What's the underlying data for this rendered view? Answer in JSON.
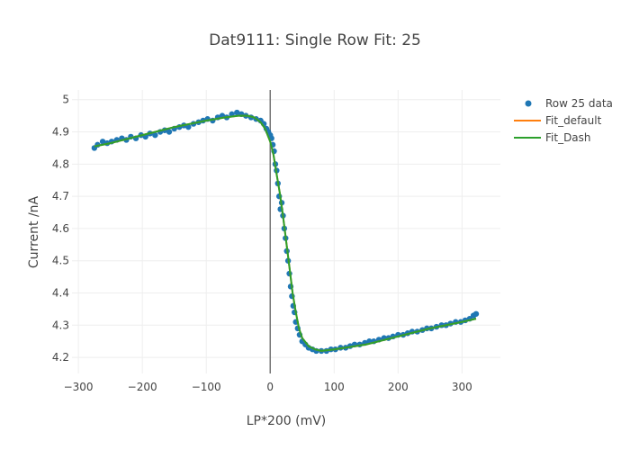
{
  "chart_data": {
    "type": "scatter",
    "title": "Dat9111: Single Row Fit: 25",
    "xlabel": "LP*200 (mV)",
    "ylabel": "Current /nA",
    "xlim": [
      -310,
      360
    ],
    "ylim": [
      4.15,
      5.03
    ],
    "x_ticks": [
      -300,
      -200,
      -100,
      0,
      100,
      200,
      300
    ],
    "x_tick_labels": [
      "−300",
      "−200",
      "−100",
      "0",
      "100",
      "200",
      "300"
    ],
    "y_ticks": [
      4.2,
      4.3,
      4.4,
      4.5,
      4.6,
      4.7,
      4.8,
      4.9,
      5
    ],
    "y_tick_labels": [
      "4.2",
      "4.3",
      "4.4",
      "4.5",
      "4.6",
      "4.7",
      "4.8",
      "4.9",
      "5"
    ],
    "grid": true,
    "legend_position": "top-right",
    "vertical_line_x": 0,
    "series": [
      {
        "name": "Row 25 data",
        "kind": "markers",
        "color": "#1f77b4",
        "points": [
          [
            -275,
            4.85
          ],
          [
            -270,
            4.86
          ],
          [
            -262,
            4.87
          ],
          [
            -255,
            4.865
          ],
          [
            -248,
            4.87
          ],
          [
            -240,
            4.875
          ],
          [
            -232,
            4.88
          ],
          [
            -225,
            4.875
          ],
          [
            -218,
            4.885
          ],
          [
            -210,
            4.88
          ],
          [
            -202,
            4.89
          ],
          [
            -195,
            4.885
          ],
          [
            -188,
            4.895
          ],
          [
            -180,
            4.89
          ],
          [
            -172,
            4.9
          ],
          [
            -165,
            4.905
          ],
          [
            -158,
            4.9
          ],
          [
            -150,
            4.91
          ],
          [
            -142,
            4.915
          ],
          [
            -135,
            4.92
          ],
          [
            -128,
            4.915
          ],
          [
            -120,
            4.925
          ],
          [
            -112,
            4.93
          ],
          [
            -105,
            4.935
          ],
          [
            -98,
            4.94
          ],
          [
            -90,
            4.935
          ],
          [
            -82,
            4.945
          ],
          [
            -75,
            4.95
          ],
          [
            -68,
            4.945
          ],
          [
            -60,
            4.955
          ],
          [
            -52,
            4.96
          ],
          [
            -45,
            4.955
          ],
          [
            -38,
            4.95
          ],
          [
            -30,
            4.945
          ],
          [
            -22,
            4.94
          ],
          [
            -15,
            4.935
          ],
          [
            -10,
            4.925
          ],
          [
            -6,
            4.91
          ],
          [
            -3,
            4.9
          ],
          [
            0,
            4.89
          ],
          [
            2,
            4.88
          ],
          [
            4,
            4.86
          ],
          [
            6,
            4.84
          ],
          [
            8,
            4.8
          ],
          [
            10,
            4.78
          ],
          [
            12,
            4.74
          ],
          [
            14,
            4.7
          ],
          [
            16,
            4.66
          ],
          [
            18,
            4.68
          ],
          [
            20,
            4.64
          ],
          [
            22,
            4.6
          ],
          [
            24,
            4.57
          ],
          [
            26,
            4.53
          ],
          [
            28,
            4.5
          ],
          [
            30,
            4.46
          ],
          [
            32,
            4.42
          ],
          [
            34,
            4.39
          ],
          [
            36,
            4.36
          ],
          [
            38,
            4.34
          ],
          [
            40,
            4.31
          ],
          [
            43,
            4.29
          ],
          [
            46,
            4.27
          ],
          [
            50,
            4.25
          ],
          [
            55,
            4.24
          ],
          [
            60,
            4.23
          ],
          [
            66,
            4.225
          ],
          [
            72,
            4.22
          ],
          [
            80,
            4.22
          ],
          [
            88,
            4.22
          ],
          [
            95,
            4.225
          ],
          [
            102,
            4.225
          ],
          [
            110,
            4.23
          ],
          [
            118,
            4.23
          ],
          [
            125,
            4.235
          ],
          [
            132,
            4.24
          ],
          [
            140,
            4.24
          ],
          [
            148,
            4.245
          ],
          [
            155,
            4.25
          ],
          [
            162,
            4.25
          ],
          [
            170,
            4.255
          ],
          [
            178,
            4.26
          ],
          [
            185,
            4.26
          ],
          [
            192,
            4.265
          ],
          [
            200,
            4.27
          ],
          [
            208,
            4.27
          ],
          [
            215,
            4.275
          ],
          [
            222,
            4.28
          ],
          [
            230,
            4.28
          ],
          [
            238,
            4.285
          ],
          [
            245,
            4.29
          ],
          [
            252,
            4.29
          ],
          [
            260,
            4.295
          ],
          [
            268,
            4.3
          ],
          [
            275,
            4.3
          ],
          [
            282,
            4.305
          ],
          [
            290,
            4.31
          ],
          [
            298,
            4.31
          ],
          [
            305,
            4.315
          ],
          [
            312,
            4.32
          ],
          [
            318,
            4.33
          ],
          [
            322,
            4.335
          ]
        ]
      },
      {
        "name": "Fit_default",
        "kind": "line",
        "color": "#ff7f0e",
        "x": [
          -275,
          -250,
          -200,
          -150,
          -100,
          -70,
          -50,
          -35,
          -25,
          -15,
          -8,
          0,
          5,
          10,
          15,
          20,
          25,
          30,
          35,
          40,
          45,
          50,
          60,
          70,
          80,
          100,
          150,
          200,
          250,
          300,
          322
        ],
        "y": [
          4.855,
          4.865,
          4.89,
          4.915,
          4.935,
          4.945,
          4.95,
          4.95,
          4.945,
          4.93,
          4.91,
          4.87,
          4.83,
          4.77,
          4.71,
          4.64,
          4.56,
          4.48,
          4.4,
          4.34,
          4.29,
          4.26,
          4.235,
          4.225,
          4.22,
          4.225,
          4.24,
          4.265,
          4.29,
          4.31,
          4.32
        ]
      },
      {
        "name": "Fit_Dash",
        "kind": "line",
        "color": "#2ca02c",
        "x": [
          -275,
          -250,
          -200,
          -150,
          -100,
          -70,
          -50,
          -35,
          -25,
          -15,
          -8,
          0,
          5,
          10,
          15,
          20,
          25,
          30,
          35,
          40,
          45,
          50,
          60,
          70,
          80,
          100,
          150,
          200,
          250,
          300,
          322
        ],
        "y": [
          4.855,
          4.865,
          4.89,
          4.915,
          4.935,
          4.945,
          4.95,
          4.95,
          4.945,
          4.93,
          4.91,
          4.87,
          4.83,
          4.77,
          4.71,
          4.64,
          4.56,
          4.48,
          4.4,
          4.34,
          4.29,
          4.26,
          4.235,
          4.225,
          4.22,
          4.225,
          4.24,
          4.265,
          4.29,
          4.31,
          4.32
        ]
      }
    ]
  }
}
